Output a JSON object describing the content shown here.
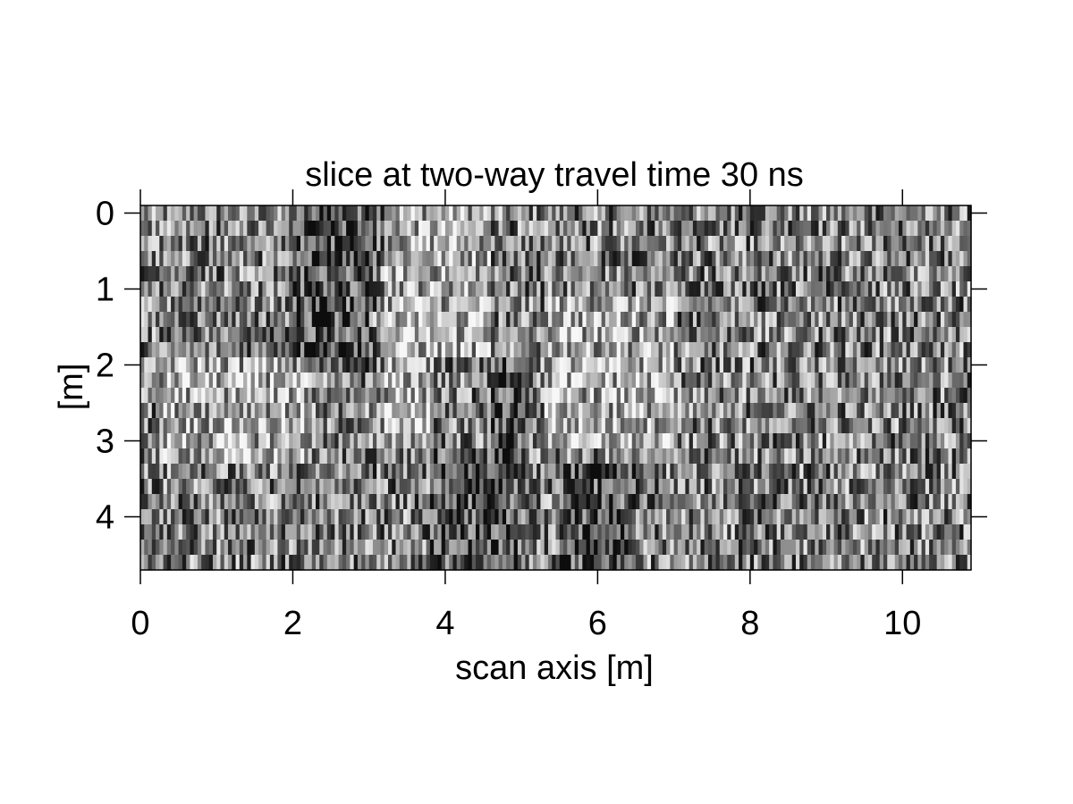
{
  "chart_data": {
    "type": "heatmap",
    "title": "slice at two-way travel time 30 ns",
    "xlabel": "scan axis [m]",
    "ylabel": "[m]",
    "xlim": [
      0,
      10.9
    ],
    "ylim": [
      4.7,
      -0.1
    ],
    "x_ticks": [
      0,
      2,
      4,
      6,
      8,
      10
    ],
    "y_ticks": [
      0,
      1,
      2,
      3,
      4
    ],
    "x_tick_labels": [
      "0",
      "2",
      "4",
      "6",
      "8",
      "10"
    ],
    "y_tick_labels": [
      "0",
      "1",
      "2",
      "3",
      "4"
    ],
    "colormap": "grayscale",
    "grid": false,
    "legend": "none",
    "grid_size": {
      "columns": 218,
      "rows": 24
    },
    "features": [
      {
        "type": "light_band",
        "x_start": 3.2,
        "x_end": 4.6,
        "y_start": -0.1,
        "y_end": 3.0
      },
      {
        "type": "light_band",
        "x_start": 0.3,
        "x_end": 2.2,
        "y_start": 2.0,
        "y_end": 3.2
      },
      {
        "type": "light_band",
        "x_start": 5.3,
        "x_end": 7.0,
        "y_start": 1.0,
        "y_end": 3.0
      },
      {
        "type": "dark_band",
        "x_start": 2.0,
        "x_end": 3.0,
        "y_start": -0.1,
        "y_end": 2.0
      },
      {
        "type": "dark_band",
        "x_start": 3.8,
        "x_end": 5.0,
        "y_start": 2.0,
        "y_end": 4.7
      },
      {
        "type": "dark_band",
        "x_start": 5.5,
        "x_end": 6.5,
        "y_start": 3.3,
        "y_end": 4.7
      }
    ],
    "colors": {
      "dark": "#111111",
      "light": "#f0f0f0",
      "frame": "#000000"
    }
  }
}
